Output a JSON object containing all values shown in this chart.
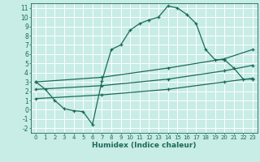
{
  "xlabel": "Humidex (Indice chaleur)",
  "xlim": [
    -0.5,
    23.5
  ],
  "ylim": [
    -2.5,
    11.5
  ],
  "xticks": [
    0,
    1,
    2,
    3,
    4,
    5,
    6,
    7,
    8,
    9,
    10,
    11,
    12,
    13,
    14,
    15,
    16,
    17,
    18,
    19,
    20,
    21,
    22,
    23
  ],
  "yticks": [
    -2,
    -1,
    0,
    1,
    2,
    3,
    4,
    5,
    6,
    7,
    8,
    9,
    10,
    11
  ],
  "bg_color": "#c8ece6",
  "line_color": "#1a6b5a",
  "grid_color": "#ffffff",
  "line1_x": [
    0,
    1,
    2,
    3,
    4,
    5,
    6,
    7,
    8,
    9,
    10,
    11,
    12,
    13,
    14,
    15,
    16,
    17,
    18,
    19,
    20,
    21,
    22,
    23
  ],
  "line1_y": [
    3.0,
    2.2,
    1.0,
    0.1,
    -0.1,
    -0.2,
    -1.6,
    3.1,
    6.5,
    7.0,
    8.6,
    9.3,
    9.7,
    10.0,
    11.2,
    11.0,
    10.3,
    9.3,
    6.5,
    5.4,
    5.4,
    4.5,
    3.3,
    3.3
  ],
  "line2_x": [
    0,
    7,
    14,
    20,
    23
  ],
  "line2_y": [
    3.0,
    3.5,
    4.5,
    5.5,
    6.5
  ],
  "line3_x": [
    0,
    7,
    14,
    20,
    23
  ],
  "line3_y": [
    2.2,
    2.6,
    3.3,
    4.2,
    4.8
  ],
  "line4_x": [
    0,
    7,
    14,
    20,
    23
  ],
  "line4_y": [
    1.2,
    1.6,
    2.2,
    3.0,
    3.4
  ]
}
